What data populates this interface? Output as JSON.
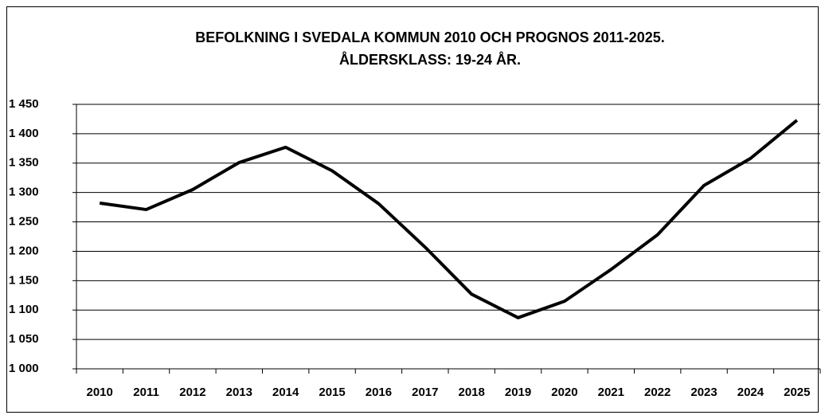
{
  "chart_data": {
    "type": "line",
    "title": [
      "BEFOLKNING I SVEDALA KOMMUN 2010 OCH PROGNOS 2011-2025.",
      "ÅLDERSKLASS: 19-24 ÅR."
    ],
    "categories": [
      "2010",
      "2011",
      "2012",
      "2013",
      "2014",
      "2015",
      "2016",
      "2017",
      "2018",
      "2019",
      "2020",
      "2021",
      "2022",
      "2023",
      "2024",
      "2025"
    ],
    "values": [
      1282,
      1271,
      1305,
      1351,
      1377,
      1337,
      1281,
      1207,
      1127,
      1087,
      1115,
      1169,
      1228,
      1312,
      1358,
      1423
    ],
    "color": "#000000",
    "ylim": [
      1000,
      1450
    ],
    "yticks": [
      {
        "value": 1000,
        "label": "1 000"
      },
      {
        "value": 1050,
        "label": "1 050"
      },
      {
        "value": 1100,
        "label": "1 100"
      },
      {
        "value": 1150,
        "label": "1 150"
      },
      {
        "value": 1200,
        "label": "1 200"
      },
      {
        "value": 1250,
        "label": "1 250"
      },
      {
        "value": 1300,
        "label": "1 300"
      },
      {
        "value": 1350,
        "label": "1 350"
      },
      {
        "value": 1400,
        "label": "1 400"
      },
      {
        "value": 1450,
        "label": "1 450"
      }
    ],
    "grid": true
  }
}
